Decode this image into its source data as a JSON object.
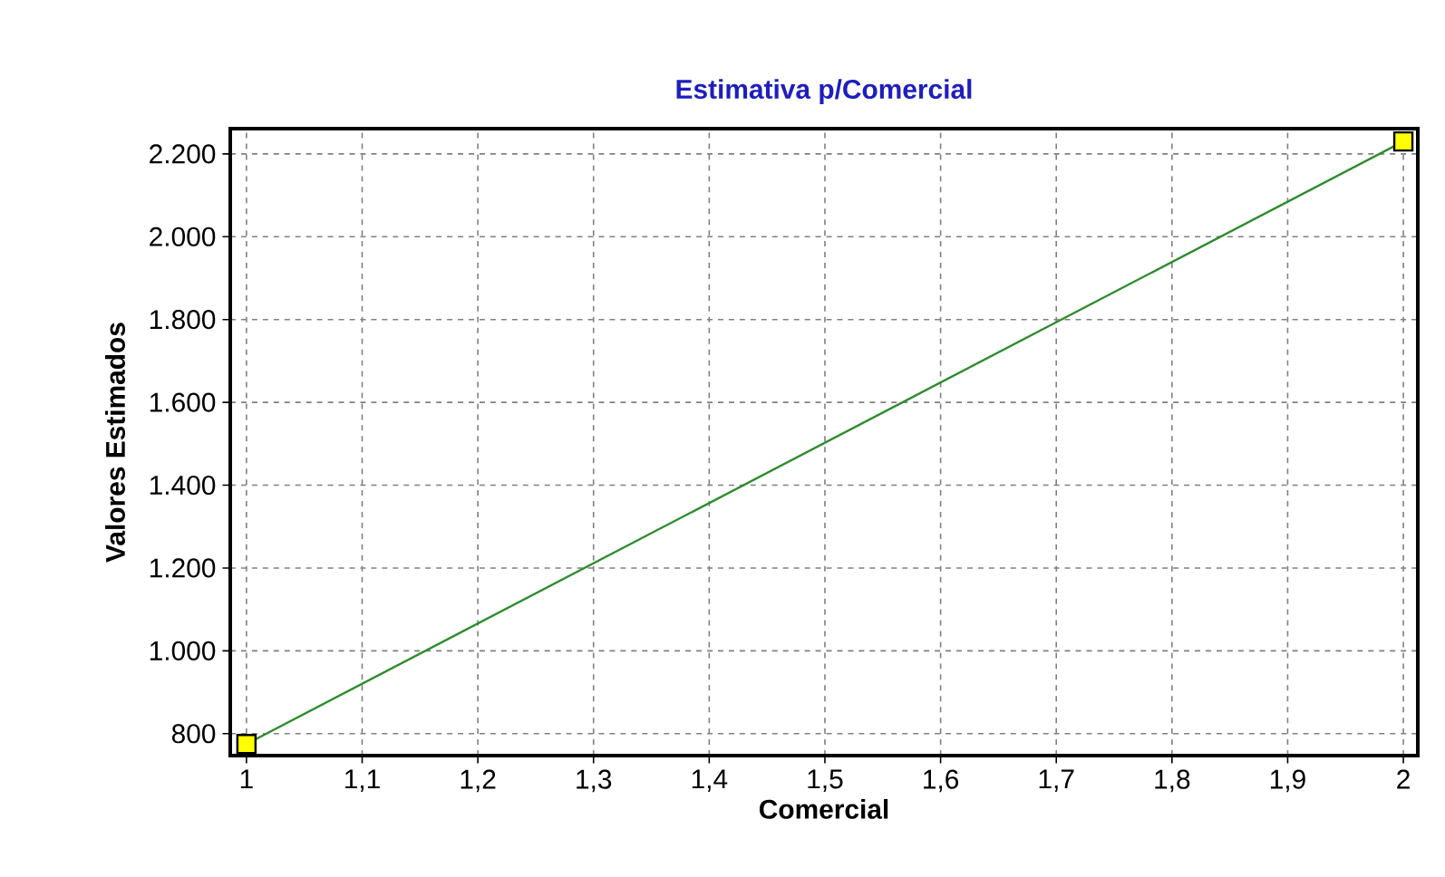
{
  "chart_data": {
    "type": "line",
    "title": "Estimativa p/Comercial",
    "xlabel": "Comercial",
    "ylabel": "Valores Estimados",
    "x": [
      1,
      2
    ],
    "series": [
      {
        "color": "#2e8b2e",
        "values": [
          775,
          2230
        ],
        "marker": "none"
      },
      {
        "type": "scatter",
        "color": "#ffff00",
        "values": [
          775,
          2230
        ],
        "marker": "square"
      }
    ],
    "xlim": [
      0.986,
      2.0125
    ],
    "ylim": [
      747,
      2261
    ],
    "xticks": [
      1,
      {
        "value": 1.1,
        "label": "1,1"
      },
      {
        "value": 1.2,
        "label": "1,2"
      },
      {
        "value": 1.3,
        "label": "1,3"
      },
      {
        "value": 1.4,
        "label": "1,4"
      },
      {
        "value": 1.5,
        "label": "1,5"
      },
      {
        "value": 1.6,
        "label": "1,6"
      },
      {
        "value": 1.7,
        "label": "1,7"
      },
      {
        "value": 1.8,
        "label": "1,8"
      },
      {
        "value": 1.9,
        "label": "1,9"
      },
      2
    ],
    "yticks": [
      800,
      {
        "value": 1000,
        "label": "1.000"
      },
      {
        "value": 1200,
        "label": "1.200"
      },
      {
        "value": 1400,
        "label": "1.400"
      },
      {
        "value": 1600,
        "label": "1.600"
      },
      {
        "value": 1800,
        "label": "1.800"
      },
      {
        "value": 2000,
        "label": "2.000"
      },
      {
        "value": 2200,
        "label": "2.200"
      }
    ],
    "grid": true
  }
}
